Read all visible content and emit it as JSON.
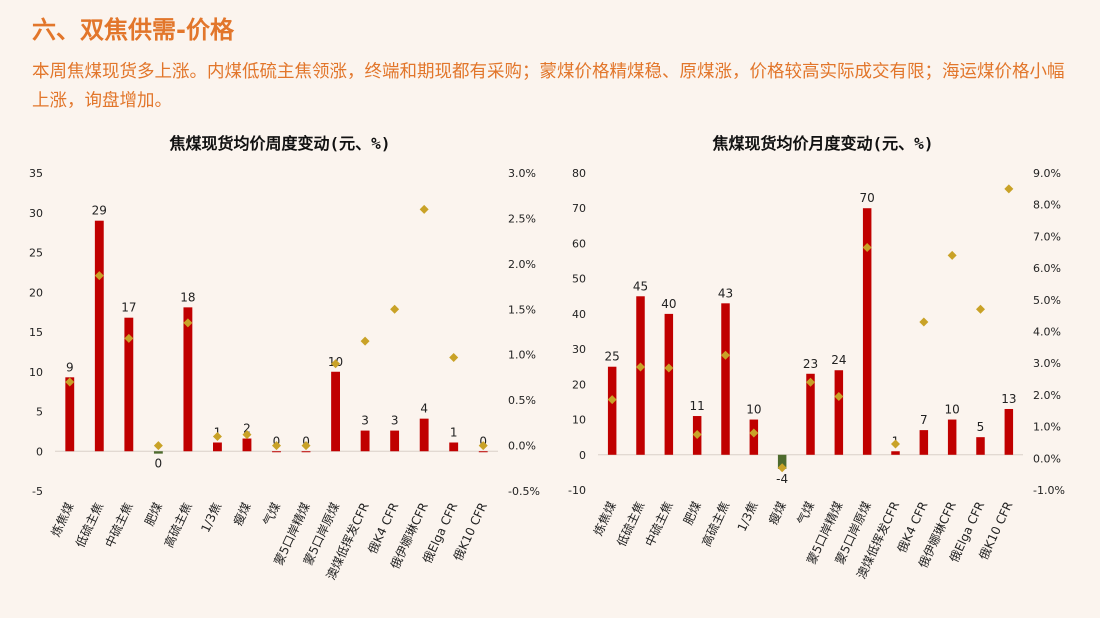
{
  "header": {
    "title": "六、双焦供需-价格",
    "summary": "本周焦煤现货多上涨。内煤低硫主焦领涨，终端和期现都有采购；蒙煤价格精煤稳、原煤涨，价格较高实际成交有限；海运煤价格小幅上涨，询盘增加。"
  },
  "colors": {
    "bar_positive": "#c00000",
    "bar_negative": "#4e6b2e",
    "marker": "#c9a227",
    "accent": "#e2762b"
  },
  "chart_data": [
    {
      "type": "bar",
      "title": "焦煤现货均价周度变动(元、%)",
      "categories": [
        "炼焦煤",
        "低硫主焦",
        "中硫主焦",
        "肥煤",
        "高硫主焦",
        "1/3焦",
        "瘦煤",
        "气煤",
        "蒙5口岸精煤",
        "蒙5口岸原煤",
        "澳煤低挥发CFR",
        "俄K4 CFR",
        "俄伊娜琳CFR",
        "俄Elga CFR",
        "俄K10 CFR"
      ],
      "series": [
        {
          "type": "bar",
          "axis": "left",
          "values": [
            9.3,
            29,
            16.8,
            -0.3,
            18.1,
            1.1,
            1.6,
            0,
            0,
            10,
            2.6,
            2.6,
            4.1,
            1.1,
            0
          ],
          "labels": [
            "9",
            "29",
            "17",
            "0",
            "18",
            "1",
            "2",
            "0",
            "0",
            "10",
            "3",
            "3",
            "4",
            "1",
            "0"
          ]
        },
        {
          "type": "scatter",
          "axis": "right",
          "values": [
            0.7,
            1.87,
            1.18,
            0.0,
            1.35,
            0.1,
            0.12,
            0.0,
            0.0,
            0.9,
            1.15,
            1.5,
            2.6,
            0.97,
            0.0
          ]
        }
      ],
      "y_left": {
        "min": -5,
        "max": 35,
        "ticks": [
          "35",
          "30",
          "25",
          "20",
          "15",
          "10",
          "5",
          "0",
          "-5"
        ]
      },
      "y_right": {
        "min": -0.5,
        "max": 3.0,
        "ticks": [
          "3.0%",
          "2.5%",
          "2.0%",
          "1.5%",
          "1.0%",
          "0.5%",
          "0.0%",
          "-0.5%"
        ]
      }
    },
    {
      "type": "bar",
      "title": "焦煤现货均价月度变动(元、%)",
      "categories": [
        "炼焦煤",
        "低硫主焦",
        "中硫主焦",
        "肥煤",
        "高硫主焦",
        "1/3焦",
        "瘦煤",
        "气煤",
        "蒙5口岸精煤",
        "蒙5口岸原煤",
        "澳煤低挥发CFR",
        "俄K4 CFR",
        "俄伊娜琳CFR",
        "俄Elga CFR",
        "俄K10 CFR"
      ],
      "series": [
        {
          "type": "bar",
          "axis": "left",
          "values": [
            25,
            45,
            40,
            11,
            43,
            10,
            -4,
            23,
            24,
            70,
            1,
            7,
            10,
            5,
            13
          ],
          "labels": [
            "25",
            "45",
            "40",
            "11",
            "43",
            "10",
            "-4",
            "23",
            "24",
            "70",
            "1",
            "7",
            "10",
            "5",
            "13"
          ]
        },
        {
          "type": "scatter",
          "axis": "right",
          "values": [
            1.85,
            2.88,
            2.85,
            0.75,
            3.25,
            0.8,
            -0.3,
            2.4,
            1.95,
            6.65,
            0.45,
            4.3,
            6.4,
            4.7,
            8.5
          ]
        }
      ],
      "y_left": {
        "min": -10,
        "max": 80,
        "ticks": [
          "80",
          "70",
          "60",
          "50",
          "40",
          "30",
          "20",
          "10",
          "0",
          "-10"
        ]
      },
      "y_right": {
        "min": -1.0,
        "max": 9.0,
        "ticks": [
          "9.0%",
          "8.0%",
          "7.0%",
          "6.0%",
          "5.0%",
          "4.0%",
          "3.0%",
          "2.0%",
          "1.0%",
          "0.0%",
          "-1.0%"
        ]
      }
    }
  ]
}
